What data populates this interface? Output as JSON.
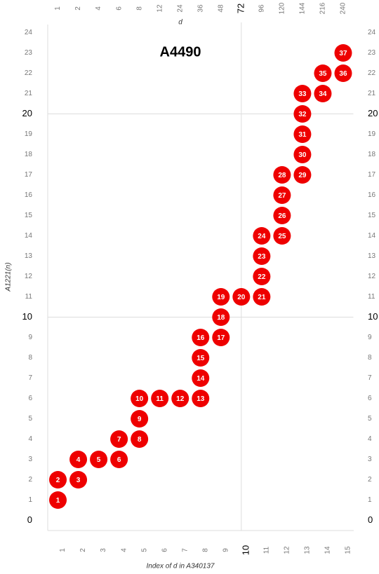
{
  "chart_data": {
    "type": "scatter",
    "title": "A4490",
    "x_label": "Index of d in A340137",
    "y_label": "A1221(n)",
    "x2_label": "d",
    "color": "#ee0000",
    "grid": true,
    "x": [
      1,
      1,
      2,
      2,
      3,
      4,
      4,
      5,
      5,
      5,
      6,
      7,
      8,
      8,
      8,
      8,
      9,
      9,
      9,
      10,
      11,
      11,
      11,
      11,
      12,
      12,
      12,
      12,
      13,
      13,
      13,
      13,
      13,
      14,
      14,
      15,
      15
    ],
    "values": [
      1,
      2,
      2,
      3,
      3,
      3,
      4,
      4,
      5,
      6,
      6,
      6,
      6,
      7,
      8,
      9,
      9,
      10,
      11,
      11,
      11,
      12,
      13,
      14,
      14,
      15,
      16,
      17,
      17,
      18,
      19,
      20,
      21,
      21,
      22,
      22,
      23
    ],
    "point_labels": [
      "1",
      "2",
      "3",
      "4",
      "5",
      "6",
      "7",
      "8",
      "9",
      "10",
      "11",
      "12",
      "13",
      "14",
      "15",
      "16",
      "17",
      "18",
      "19",
      "20",
      "21",
      "22",
      "23",
      "24",
      "25",
      "26",
      "27",
      "28",
      "29",
      "30",
      "31",
      "32",
      "33",
      "34",
      "35",
      "36",
      "37"
    ],
    "xlim": [
      0.5,
      15.5
    ],
    "ylim": [
      -0.5,
      24.5
    ],
    "xticks": [
      1,
      2,
      3,
      4,
      5,
      6,
      7,
      8,
      9,
      10,
      11,
      12,
      13,
      14,
      15
    ],
    "x2ticks": [
      {
        "value": 1,
        "label": "1"
      },
      {
        "value": 2,
        "label": "2"
      },
      {
        "value": 3,
        "label": "4"
      },
      {
        "value": 4,
        "label": "6"
      },
      {
        "value": 5,
        "label": "8"
      },
      {
        "value": 6,
        "label": "12"
      },
      {
        "value": 7,
        "label": "24"
      },
      {
        "value": 8,
        "label": "36"
      },
      {
        "value": 9,
        "label": "48"
      },
      {
        "value": 10,
        "label": "72"
      },
      {
        "value": 11,
        "label": "96"
      },
      {
        "value": 12,
        "label": "120"
      },
      {
        "value": 13,
        "label": "144"
      },
      {
        "value": 14,
        "label": "216"
      },
      {
        "value": 15,
        "label": "240"
      }
    ],
    "yticks": [
      0,
      1,
      2,
      3,
      4,
      5,
      6,
      7,
      8,
      9,
      10,
      11,
      12,
      13,
      14,
      15,
      16,
      17,
      18,
      19,
      20,
      21,
      22,
      23,
      24
    ]
  }
}
